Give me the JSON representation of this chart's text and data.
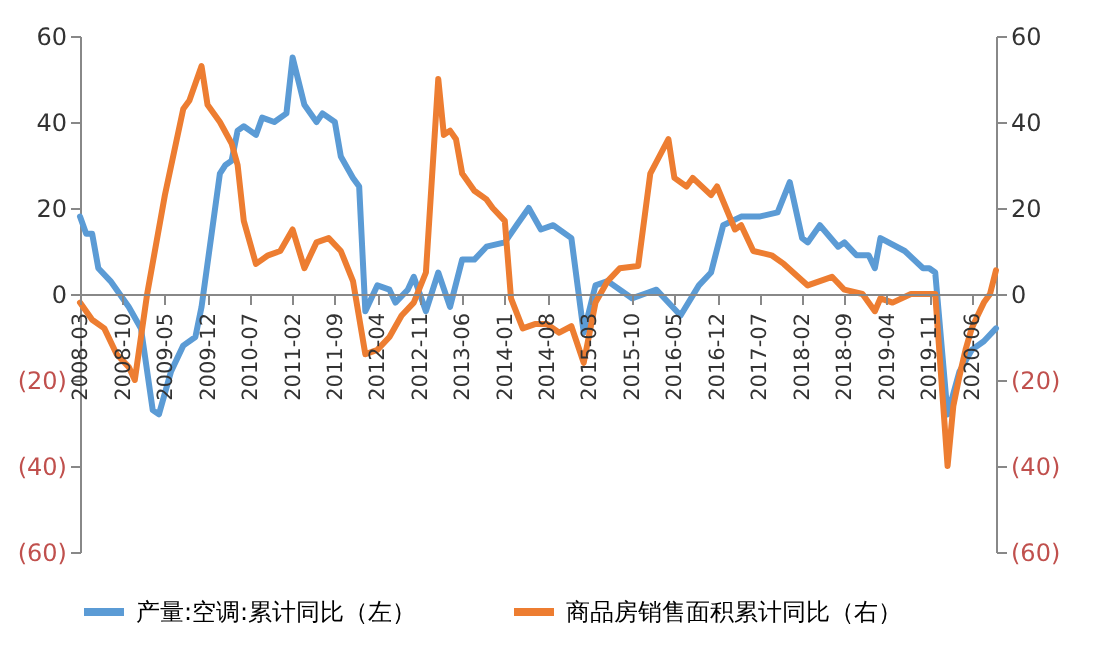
{
  "chart_data": {
    "type": "line",
    "legend": "bottom",
    "xlim": [
      "2008-03",
      "2020-10"
    ],
    "xticks": [
      "2008-03",
      "2008-10",
      "2009-05",
      "2009-12",
      "2010-07",
      "2011-02",
      "2011-09",
      "2012-04",
      "2012-11",
      "2013-06",
      "2014-01",
      "2014-08",
      "2015-03",
      "2015-10",
      "2016-05",
      "2016-12",
      "2017-07",
      "2018-02",
      "2018-09",
      "2019-04",
      "2019-11",
      "2020-06"
    ],
    "ylim": [
      -60,
      60
    ],
    "yticks": [
      {
        "value": -60,
        "label": "(60)"
      },
      {
        "value": -40,
        "label": "(40)"
      },
      {
        "value": -20,
        "label": "(20)"
      },
      0,
      20,
      40,
      60
    ],
    "y2lim": [
      -60,
      60
    ],
    "y2ticks": [
      {
        "value": -60,
        "label": "(60)"
      },
      {
        "value": -40,
        "label": "(40)"
      },
      {
        "value": -20,
        "label": "(20)"
      },
      0,
      20,
      40,
      60
    ],
    "series": [
      {
        "name": "产量:空调:累计同比（左）",
        "color": "#5b9bd5",
        "x": [
          "2008-03",
          "2008-04",
          "2008-05",
          "2008-06",
          "2008-08",
          "2008-11",
          "2009-01",
          "2009-03",
          "2009-04",
          "2009-06",
          "2009-08",
          "2009-10",
          "2009-11",
          "2010-02",
          "2010-03",
          "2010-04",
          "2010-05",
          "2010-06",
          "2010-08",
          "2010-09",
          "2010-11",
          "2011-01",
          "2011-02",
          "2011-04",
          "2011-06",
          "2011-07",
          "2011-09",
          "2011-10",
          "2011-12",
          "2012-01",
          "2012-02",
          "2012-04",
          "2012-06",
          "2012-07",
          "2012-09",
          "2012-10",
          "2012-12",
          "2013-02",
          "2013-04",
          "2013-06",
          "2013-08",
          "2013-10",
          "2014-01",
          "2014-03",
          "2014-05",
          "2014-07",
          "2014-09",
          "2014-12",
          "2015-02",
          "2015-04",
          "2015-06",
          "2015-10",
          "2015-12",
          "2016-02",
          "2016-06",
          "2016-09",
          "2016-11",
          "2017-01",
          "2017-04",
          "2017-07",
          "2017-10",
          "2017-12",
          "2018-02",
          "2018-03",
          "2018-05",
          "2018-08",
          "2018-09",
          "2018-11",
          "2019-01",
          "2019-02",
          "2019-03",
          "2019-07",
          "2019-10",
          "2019-11",
          "2019-12",
          "2020-02",
          "2020-04",
          "2020-06",
          "2020-08",
          "2020-10"
        ],
        "values": [
          18,
          14,
          14,
          6,
          3,
          -3,
          -8,
          -27,
          -28,
          -18,
          -12,
          -10,
          -3,
          28,
          30,
          31,
          38,
          39,
          37,
          41,
          40,
          42,
          55,
          44,
          40,
          42,
          40,
          32,
          27,
          25,
          -4,
          2,
          1,
          -2,
          1,
          4,
          -4,
          5,
          -3,
          8,
          8,
          11,
          12,
          16,
          20,
          15,
          16,
          13,
          -9,
          2,
          3,
          -1,
          0,
          1,
          -5,
          2,
          5,
          16,
          18,
          18,
          19,
          26,
          13,
          12,
          16,
          11,
          12,
          9,
          9,
          6,
          13,
          10,
          6,
          6,
          5,
          -28,
          -18,
          -13,
          -11,
          -8
        ]
      },
      {
        "name": "商品房销售面积累计同比（右）",
        "color": "#ed7d31",
        "axis": "y2",
        "x": [
          "2008-03",
          "2008-05",
          "2008-07",
          "2008-09",
          "2008-11",
          "2008-12",
          "2009-02",
          "2009-05",
          "2009-08",
          "2009-09",
          "2009-11",
          "2009-12",
          "2010-02",
          "2010-04",
          "2010-05",
          "2010-06",
          "2010-08",
          "2010-10",
          "2010-12",
          "2011-02",
          "2011-04",
          "2011-06",
          "2011-08",
          "2011-10",
          "2011-12",
          "2012-02",
          "2012-04",
          "2012-06",
          "2012-08",
          "2012-10",
          "2012-12",
          "2013-02",
          "2013-03",
          "2013-04",
          "2013-05",
          "2013-06",
          "2013-08",
          "2013-10",
          "2013-11",
          "2014-01",
          "2014-02",
          "2014-04",
          "2014-06",
          "2014-08",
          "2014-10",
          "2014-12",
          "2015-02",
          "2015-04",
          "2015-06",
          "2015-08",
          "2015-11",
          "2016-01",
          "2016-04",
          "2016-05",
          "2016-07",
          "2016-08",
          "2016-11",
          "2016-12",
          "2017-03",
          "2017-04",
          "2017-06",
          "2017-09",
          "2017-11",
          "2018-03",
          "2018-07",
          "2018-09",
          "2018-12",
          "2019-02",
          "2019-03",
          "2019-05",
          "2019-08",
          "2019-11",
          "2019-12",
          "2020-02",
          "2020-03",
          "2020-04",
          "2020-05",
          "2020-06",
          "2020-07",
          "2020-08",
          "2020-09",
          "2020-10"
        ],
        "values": [
          -2,
          -6,
          -8,
          -14,
          -17,
          -20,
          0,
          23,
          43,
          45,
          53,
          44,
          40,
          35,
          30,
          17,
          7,
          9,
          10,
          15,
          6,
          12,
          13,
          10,
          3,
          -14,
          -13,
          -10,
          -5,
          -2,
          5,
          50,
          37,
          38,
          36,
          28,
          24,
          22,
          20,
          17,
          -1,
          -8,
          -7,
          -7,
          -9,
          -7.5,
          -16,
          -2,
          3,
          6,
          6.5,
          28,
          36,
          27,
          25,
          27,
          23,
          25,
          15,
          16,
          10,
          9,
          7,
          2,
          4,
          1,
          0,
          -4,
          -1,
          -2,
          0,
          0,
          0,
          -40,
          -26,
          -19,
          -13,
          -8,
          -5,
          -2,
          0,
          5.5
        ]
      }
    ]
  }
}
